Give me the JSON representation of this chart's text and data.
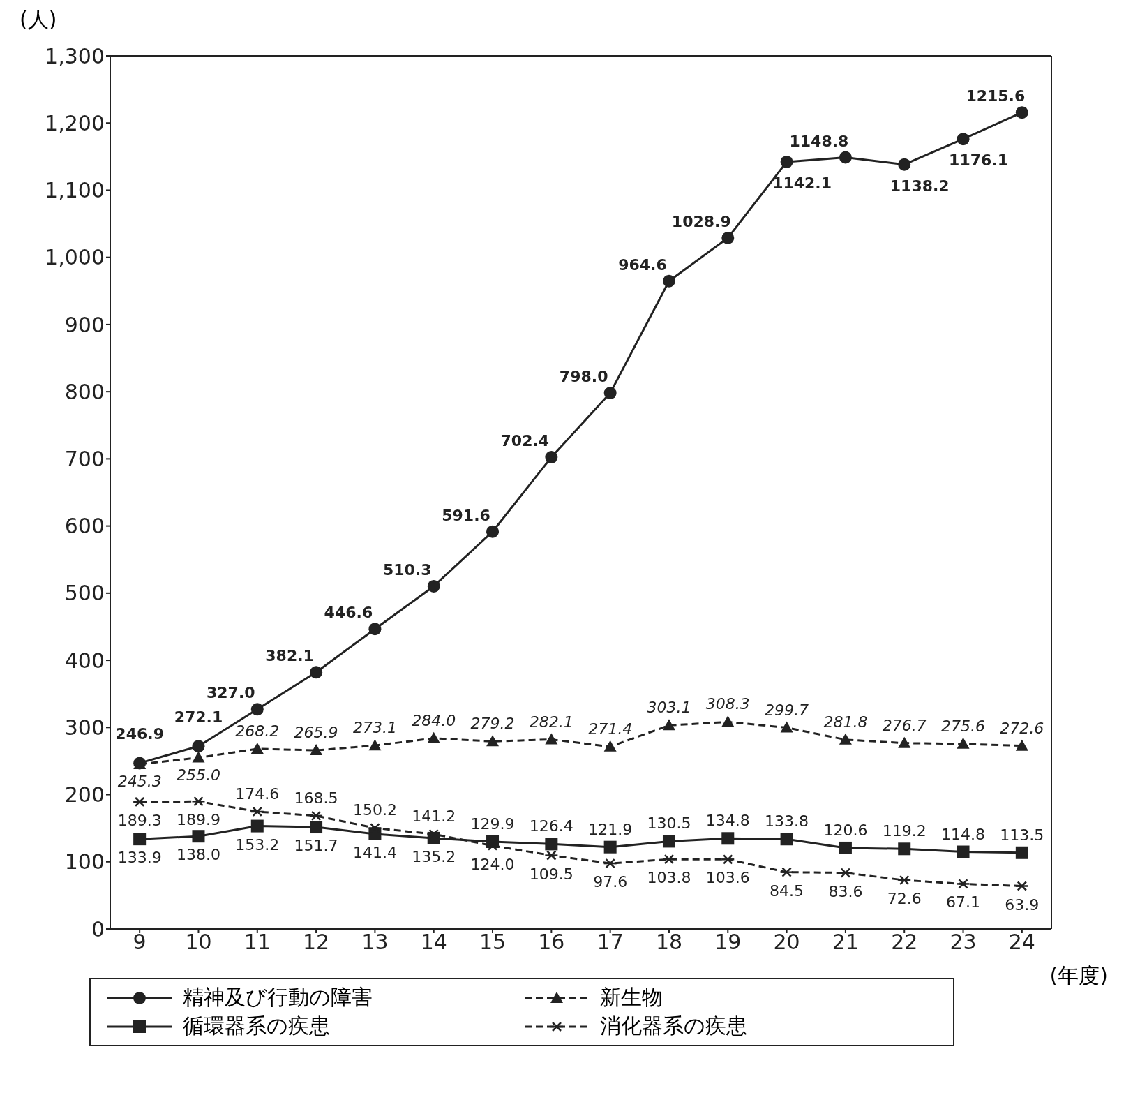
{
  "chart_data": {
    "type": "line",
    "ylabel": "(人)",
    "xlabel": "(年度)",
    "categories": [
      "9",
      "10",
      "11",
      "12",
      "13",
      "14",
      "15",
      "16",
      "17",
      "18",
      "19",
      "20",
      "21",
      "22",
      "23",
      "24"
    ],
    "series": [
      {
        "name": "精神及び行動の障害",
        "color": "#222222",
        "marker": "circle",
        "line_style": "solid",
        "values": [
          246.9,
          272.1,
          327.0,
          382.1,
          446.6,
          510.3,
          591.6,
          702.4,
          798.0,
          964.6,
          1028.9,
          1142.1,
          1148.8,
          1138.2,
          1176.1,
          1215.6
        ],
        "value_labels": [
          "246.9",
          "272.1",
          "327.0",
          "382.1",
          "446.6",
          "510.3",
          "591.6",
          "702.4",
          "798.0",
          "964.6",
          "1028.9",
          "1142.1",
          "1148.8",
          "1138.2",
          "1176.1",
          "1215.6"
        ]
      },
      {
        "name": "新生物",
        "color": "#222222",
        "marker": "triangle",
        "line_style": "dashed",
        "values": [
          245.3,
          255.0,
          268.2,
          265.9,
          273.1,
          284.0,
          279.2,
          282.1,
          271.4,
          303.1,
          308.3,
          299.7,
          281.8,
          276.7,
          275.6,
          272.6
        ],
        "value_labels": [
          "245.3",
          "255.0",
          "268.2",
          "265.9",
          "273.1",
          "284.0",
          "279.2",
          "282.1",
          "271.4",
          "303.1",
          "308.3",
          "299.7",
          "281.8",
          "276.7",
          "275.6",
          "272.6"
        ]
      },
      {
        "name": "循環器系の疾患",
        "color": "#222222",
        "marker": "square",
        "line_style": "solid",
        "values": [
          133.9,
          138.0,
          153.2,
          151.7,
          141.4,
          135.2,
          129.9,
          126.4,
          121.9,
          130.5,
          134.8,
          133.8,
          120.6,
          119.2,
          114.8,
          113.5
        ],
        "value_labels": [
          "133.9",
          "138.0",
          "153.2",
          "151.7",
          "141.4",
          "135.2",
          "129.9",
          "126.4",
          "121.9",
          "130.5",
          "134.8",
          "133.8",
          "120.6",
          "119.2",
          "114.8",
          "113.5"
        ]
      },
      {
        "name": "消化器系の疾患",
        "color": "#222222",
        "marker": "cross",
        "line_style": "dashed",
        "values": [
          189.3,
          189.9,
          174.6,
          168.5,
          150.2,
          141.2,
          124.0,
          109.5,
          97.6,
          103.8,
          103.6,
          84.5,
          83.6,
          72.6,
          67.1,
          63.9
        ],
        "value_labels": [
          "189.3",
          "189.9",
          "174.6",
          "168.5",
          "150.2",
          "141.2",
          "124.0",
          "109.5",
          "97.6",
          "103.8",
          "103.6",
          "84.5",
          "83.6",
          "72.6",
          "67.1",
          "63.9"
        ]
      }
    ],
    "ylim": [
      0,
      1300
    ],
    "yticks": [
      0,
      100,
      200,
      300,
      400,
      500,
      600,
      700,
      800,
      900,
      {
        "value": 1000,
        "label": "1,000"
      },
      {
        "value": 1100,
        "label": "1,100"
      },
      {
        "value": 1200,
        "label": "1,200"
      },
      {
        "value": 1300,
        "label": "1,300"
      }
    ],
    "grid": false,
    "legend": "bottom"
  }
}
